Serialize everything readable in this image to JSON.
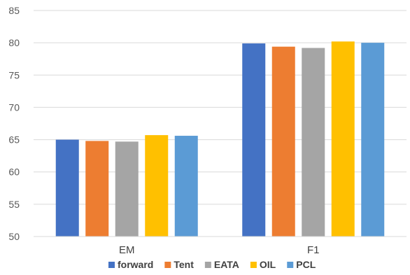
{
  "chart_data": {
    "type": "bar",
    "title": "",
    "xlabel": "",
    "ylabel": "",
    "categories": [
      "EM",
      "F1"
    ],
    "ylim": [
      50,
      85
    ],
    "yticks": [
      50,
      55,
      60,
      65,
      70,
      75,
      80,
      85
    ],
    "grid": true,
    "legend_position": "bottom",
    "series": [
      {
        "name": "forward",
        "color": "#4472C4",
        "values": [
          65.0,
          79.9
        ]
      },
      {
        "name": "Tent",
        "color": "#ED7D31",
        "values": [
          64.8,
          79.4
        ]
      },
      {
        "name": "EATA",
        "color": "#A5A5A5",
        "values": [
          64.7,
          79.2
        ]
      },
      {
        "name": "OIL",
        "color": "#FFC000",
        "values": [
          65.7,
          80.2
        ]
      },
      {
        "name": "PCL",
        "color": "#5B9BD5",
        "values": [
          65.6,
          80.0
        ]
      }
    ]
  }
}
